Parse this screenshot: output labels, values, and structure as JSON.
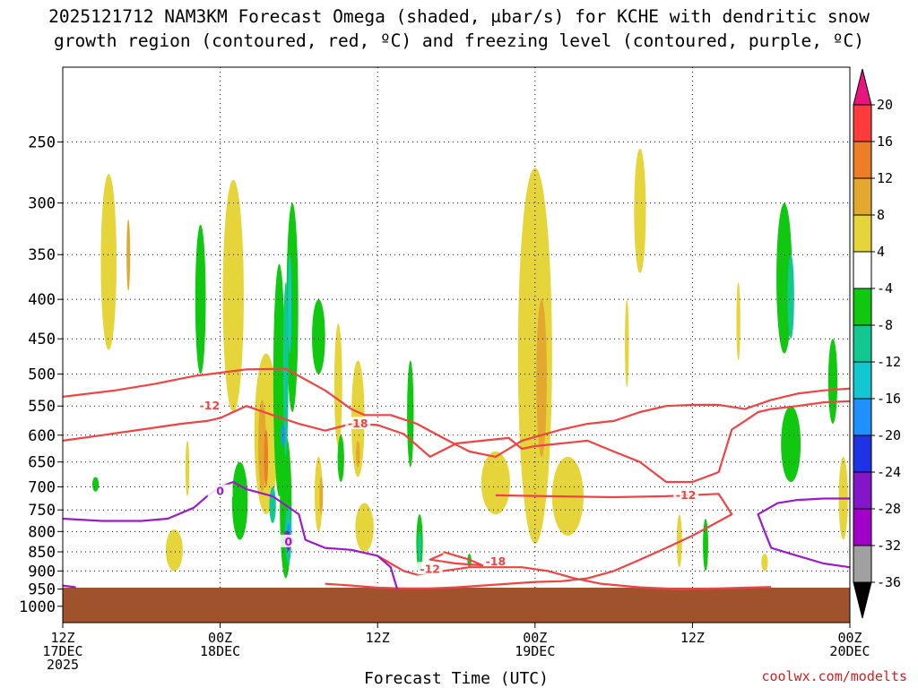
{
  "title": {
    "line1": "2025121712 NAM3KM Forecast Omega (shaded, μbar/s) for KCHE with dendritic snow",
    "line2": "growth region (contoured, red, ºC) and freezing level (contoured, purple, ºC)"
  },
  "credit": "coolwx.com/modelts",
  "chart_data": {
    "type": "time-height",
    "xlabel": "Forecast Time (UTC)",
    "ylabel": "",
    "y_axis": {
      "type": "log",
      "reversed": true,
      "range": [
        200,
        1050
      ],
      "ticks": [
        250,
        300,
        350,
        400,
        450,
        500,
        550,
        600,
        650,
        700,
        750,
        800,
        850,
        900,
        950,
        1000
      ]
    },
    "x_axis": {
      "range_hours": [
        0,
        60
      ],
      "ticks": [
        {
          "hour": 0,
          "lines": [
            "12Z",
            "17DEC",
            "2025"
          ]
        },
        {
          "hour": 12,
          "lines": [
            "00Z",
            "18DEC"
          ]
        },
        {
          "hour": 24,
          "lines": [
            "12Z"
          ]
        },
        {
          "hour": 36,
          "lines": [
            "00Z",
            "19DEC"
          ]
        },
        {
          "hour": 48,
          "lines": [
            "12Z"
          ]
        },
        {
          "hour": 60,
          "lines": [
            "00Z",
            "20DEC"
          ]
        }
      ]
    },
    "grid": true,
    "terrain": {
      "color": "#a0522d",
      "surface_pressure": 946
    },
    "colorbar": {
      "placement": "right",
      "levels": [
        {
          "label": "20",
          "color": "#e8157f"
        },
        {
          "label": "16",
          "color": "#ff3b3b"
        },
        {
          "label": "12",
          "color": "#ee7d28"
        },
        {
          "label": "8",
          "color": "#e3a82f"
        },
        {
          "label": "4",
          "color": "#e6d53a"
        },
        {
          "label": "-4",
          "color": "#ffffff"
        },
        {
          "label": "-8",
          "color": "#10c810"
        },
        {
          "label": "-12",
          "color": "#10c890"
        },
        {
          "label": "-16",
          "color": "#11c8d0"
        },
        {
          "label": "-20",
          "color": "#1e90ff"
        },
        {
          "label": "-24",
          "color": "#1e32e6"
        },
        {
          "label": "-28",
          "color": "#8216c8"
        },
        {
          "label": "-32",
          "color": "#a000c8"
        },
        {
          "label": "-36",
          "color": "#a0a0a0"
        }
      ],
      "below_min_color": "#000000",
      "above_max_color": "#e8157f"
    },
    "omega_regions": [
      {
        "level": "4",
        "x": 3.5,
        "p_top": 275,
        "p_bot": 465,
        "w": 1.2
      },
      {
        "level": "8",
        "x": 5.0,
        "p_top": 315,
        "p_bot": 390,
        "w": 0.25
      },
      {
        "level": "4",
        "x": 13.0,
        "p_top": 280,
        "p_bot": 560,
        "w": 1.6
      },
      {
        "level": "4",
        "x": 8.5,
        "p_top": 795,
        "p_bot": 900,
        "w": 1.3
      },
      {
        "level": "4",
        "x": 9.5,
        "p_top": 610,
        "p_bot": 720,
        "w": 0.3
      },
      {
        "level": "4",
        "x": 15.5,
        "p_top": 470,
        "p_bot": 760,
        "w": 1.8
      },
      {
        "level": "8",
        "x": 15.2,
        "p_top": 540,
        "p_bot": 710,
        "w": 0.6
      },
      {
        "level": "12",
        "x": 15.5,
        "p_top": 590,
        "p_bot": 700,
        "w": 0.3
      },
      {
        "level": "4",
        "x": 19.5,
        "p_top": 640,
        "p_bot": 800,
        "w": 0.6
      },
      {
        "level": "8",
        "x": 19.7,
        "p_top": 680,
        "p_bot": 760,
        "w": 0.25
      },
      {
        "level": "4",
        "x": 21.0,
        "p_top": 430,
        "p_bot": 620,
        "w": 0.6
      },
      {
        "level": "4",
        "x": 22.5,
        "p_top": 480,
        "p_bot": 680,
        "w": 1.0
      },
      {
        "level": "8",
        "x": 22.5,
        "p_top": 610,
        "p_bot": 660,
        "w": 0.3
      },
      {
        "level": "4",
        "x": 23.0,
        "p_top": 735,
        "p_bot": 850,
        "w": 1.4
      },
      {
        "level": "4",
        "x": 36.0,
        "p_top": 270,
        "p_bot": 830,
        "w": 2.6
      },
      {
        "level": "8",
        "x": 36.5,
        "p_top": 400,
        "p_bot": 640,
        "w": 0.8
      },
      {
        "level": "4",
        "x": 33.0,
        "p_top": 630,
        "p_bot": 760,
        "w": 2.2
      },
      {
        "level": "4",
        "x": 38.5,
        "p_top": 640,
        "p_bot": 810,
        "w": 2.4
      },
      {
        "level": "4",
        "x": 44.0,
        "p_top": 255,
        "p_bot": 370,
        "w": 0.9
      },
      {
        "level": "4",
        "x": 43.0,
        "p_top": 400,
        "p_bot": 520,
        "w": 0.3
      },
      {
        "level": "4",
        "x": 47.0,
        "p_top": 760,
        "p_bot": 890,
        "w": 0.4
      },
      {
        "level": "4",
        "x": 51.5,
        "p_top": 380,
        "p_bot": 480,
        "w": 0.3
      },
      {
        "level": "4",
        "x": 53.5,
        "p_top": 855,
        "p_bot": 900,
        "w": 0.5
      },
      {
        "level": "4",
        "x": 59.5,
        "p_top": 640,
        "p_bot": 820,
        "w": 0.7
      },
      {
        "level": "-8",
        "x": 10.5,
        "p_top": 320,
        "p_bot": 500,
        "w": 0.8
      },
      {
        "level": "-8",
        "x": 13.5,
        "p_top": 650,
        "p_bot": 820,
        "w": 1.2
      },
      {
        "level": "-8",
        "x": 16.5,
        "p_top": 360,
        "p_bot": 720,
        "w": 0.9
      },
      {
        "level": "-8",
        "x": 17.0,
        "p_top": 600,
        "p_bot": 920,
        "w": 0.9
      },
      {
        "level": "-8",
        "x": 17.5,
        "p_top": 300,
        "p_bot": 560,
        "w": 0.9
      },
      {
        "level": "-8",
        "x": 19.5,
        "p_top": 400,
        "p_bot": 500,
        "w": 1.0
      },
      {
        "level": "-8",
        "x": 21.2,
        "p_top": 600,
        "p_bot": 690,
        "w": 0.5
      },
      {
        "level": "-8",
        "x": 26.5,
        "p_top": 480,
        "p_bot": 660,
        "w": 0.5
      },
      {
        "level": "-8",
        "x": 27.2,
        "p_top": 760,
        "p_bot": 900,
        "w": 0.5
      },
      {
        "level": "-8",
        "x": 31.0,
        "p_top": 855,
        "p_bot": 890,
        "w": 0.3
      },
      {
        "level": "-8",
        "x": 49.0,
        "p_top": 770,
        "p_bot": 900,
        "w": 0.4
      },
      {
        "level": "-8",
        "x": 55.0,
        "p_top": 300,
        "p_bot": 470,
        "w": 1.2
      },
      {
        "level": "-8",
        "x": 55.5,
        "p_top": 550,
        "p_bot": 690,
        "w": 1.5
      },
      {
        "level": "-8",
        "x": 58.7,
        "p_top": 450,
        "p_bot": 580,
        "w": 0.7
      },
      {
        "level": "-8",
        "x": 2.5,
        "p_top": 680,
        "p_bot": 710,
        "w": 0.5
      },
      {
        "level": "-12",
        "x": 17.0,
        "p_top": 380,
        "p_bot": 640,
        "w": 0.4
      },
      {
        "level": "-12",
        "x": 16.0,
        "p_top": 700,
        "p_bot": 780,
        "w": 0.5
      },
      {
        "level": "-12",
        "x": 17.2,
        "p_top": 740,
        "p_bot": 880,
        "w": 0.5
      },
      {
        "level": "-12",
        "x": 27.2,
        "p_top": 800,
        "p_bot": 880,
        "w": 0.2
      },
      {
        "level": "-12",
        "x": 55.5,
        "p_top": 350,
        "p_bot": 450,
        "w": 0.5
      },
      {
        "level": "-16",
        "x": 17.3,
        "p_top": 350,
        "p_bot": 470,
        "w": 0.2
      },
      {
        "level": "-16",
        "x": 17.2,
        "p_top": 770,
        "p_bot": 860,
        "w": 0.3
      },
      {
        "level": "-20",
        "x": 17.2,
        "p_top": 780,
        "p_bot": 850,
        "w": 0.2
      },
      {
        "level": "-20",
        "x": 16.8,
        "p_top": 580,
        "p_bot": 620,
        "w": 0.12
      },
      {
        "level": "-24",
        "x": 17.2,
        "p_top": 800,
        "p_bot": 840,
        "w": 0.12
      },
      {
        "level": "-28",
        "x": 17.2,
        "p_top": 810,
        "p_bot": 830,
        "w": 0.08
      }
    ],
    "dgz_contours": [
      {
        "label": "-12",
        "label_at": [
          11.2,
          550
        ],
        "points": [
          [
            0,
            535
          ],
          [
            4,
            525
          ],
          [
            7,
            515
          ],
          [
            10,
            503
          ],
          [
            12,
            498
          ],
          [
            14,
            493
          ],
          [
            17,
            492
          ],
          [
            20,
            525
          ],
          [
            22,
            555
          ],
          [
            23,
            565
          ],
          [
            25,
            565
          ],
          [
            27,
            580
          ],
          [
            29,
            605
          ],
          [
            31,
            630
          ],
          [
            33,
            640
          ],
          [
            35,
            610
          ],
          [
            38,
            590
          ],
          [
            40,
            580
          ],
          [
            42,
            575
          ],
          [
            44,
            560
          ],
          [
            46,
            550
          ],
          [
            48,
            548
          ],
          [
            50,
            548
          ],
          [
            52,
            555
          ],
          [
            54,
            540
          ],
          [
            56,
            530
          ],
          [
            58,
            525
          ],
          [
            60,
            522
          ]
        ]
      },
      {
        "label": "-18",
        "label_at": [
          22.5,
          580
        ],
        "points": [
          [
            0,
            610
          ],
          [
            3,
            600
          ],
          [
            6,
            590
          ],
          [
            9,
            580
          ],
          [
            11,
            575
          ],
          [
            12,
            570
          ],
          [
            14,
            550
          ],
          [
            16,
            565
          ],
          [
            18,
            580
          ],
          [
            20,
            592
          ],
          [
            22,
            580
          ],
          [
            24,
            582
          ],
          [
            26,
            598
          ],
          [
            28,
            640
          ],
          [
            30,
            615
          ],
          [
            32,
            610
          ],
          [
            34,
            605
          ],
          [
            35,
            625
          ],
          [
            36,
            620
          ],
          [
            38,
            615
          ],
          [
            40,
            610
          ],
          [
            42,
            630
          ],
          [
            44,
            650
          ],
          [
            46,
            690
          ],
          [
            48,
            690
          ],
          [
            50,
            670
          ],
          [
            51,
            590
          ],
          [
            52,
            575
          ],
          [
            53,
            560
          ],
          [
            54,
            555
          ],
          [
            56,
            550
          ],
          [
            58,
            544
          ],
          [
            60,
            542
          ]
        ]
      },
      {
        "label": "-12",
        "label_at": [
          47.5,
          718
        ],
        "points": [
          [
            33,
            718
          ],
          [
            37,
            720
          ],
          [
            42,
            722
          ],
          [
            46,
            720
          ],
          [
            50,
            715
          ],
          [
            51,
            760
          ],
          [
            48,
            810
          ],
          [
            46,
            840
          ],
          [
            44,
            870
          ],
          [
            42,
            900
          ],
          [
            40,
            920
          ],
          [
            38,
            928
          ],
          [
            36,
            930
          ],
          [
            34,
            935
          ],
          [
            32,
            940
          ],
          [
            30,
            945
          ],
          [
            28,
            948
          ],
          [
            26,
            948
          ],
          [
            24,
            946
          ],
          [
            22,
            940
          ],
          [
            20,
            935
          ]
        ]
      },
      {
        "label": "-18",
        "label_at": [
          33.0,
          875
        ],
        "points": [
          [
            29,
            850
          ],
          [
            30,
            860
          ],
          [
            31,
            870
          ],
          [
            32,
            885
          ],
          [
            30,
            880
          ],
          [
            28,
            870
          ],
          [
            29,
            855
          ]
        ]
      },
      {
        "label": "-12",
        "label_at": [
          28.0,
          895
        ],
        "points": [
          [
            24,
            860
          ],
          [
            25,
            880
          ],
          [
            26,
            900
          ],
          [
            27,
            910
          ],
          [
            28,
            905
          ],
          [
            29,
            900
          ],
          [
            31,
            890
          ],
          [
            33,
            890
          ],
          [
            35,
            890
          ],
          [
            37,
            900
          ],
          [
            39,
            920
          ],
          [
            41,
            935
          ],
          [
            44,
            945
          ],
          [
            47,
            950
          ],
          [
            50,
            948
          ],
          [
            52,
            946
          ],
          [
            54,
            944
          ]
        ]
      }
    ],
    "freezing_contours": [
      {
        "label": "0",
        "label_at": [
          12.0,
          710
        ],
        "points": [
          [
            0,
            770
          ],
          [
            3,
            775
          ],
          [
            6,
            775
          ],
          [
            8,
            770
          ],
          [
            10,
            745
          ],
          [
            11,
            720
          ],
          [
            12,
            700
          ],
          [
            13,
            690
          ],
          [
            14,
            705
          ],
          [
            16,
            720
          ],
          [
            18,
            760
          ],
          [
            18.5,
            820
          ],
          [
            20,
            840
          ],
          [
            22,
            845
          ],
          [
            24,
            860
          ],
          [
            25,
            890
          ],
          [
            25.5,
            950
          ]
        ]
      },
      {
        "label": "0",
        "label_at": [
          17.2,
          825
        ],
        "points": [
          [
            17.0,
            800
          ],
          [
            17.5,
            820
          ],
          [
            17.2,
            845
          ],
          [
            16.9,
            820
          ],
          [
            17.0,
            800
          ]
        ]
      },
      {
        "label": "",
        "label_at": null,
        "points": [
          [
            0,
            940
          ],
          [
            1,
            945
          ]
        ]
      },
      {
        "label": "",
        "label_at": null,
        "points": [
          [
            60,
            725
          ],
          [
            58,
            725
          ],
          [
            56,
            728
          ],
          [
            54.5,
            735
          ],
          [
            53,
            760
          ],
          [
            53.5,
            800
          ],
          [
            54,
            840
          ],
          [
            56,
            860
          ],
          [
            58,
            880
          ],
          [
            60,
            890
          ]
        ]
      }
    ]
  }
}
